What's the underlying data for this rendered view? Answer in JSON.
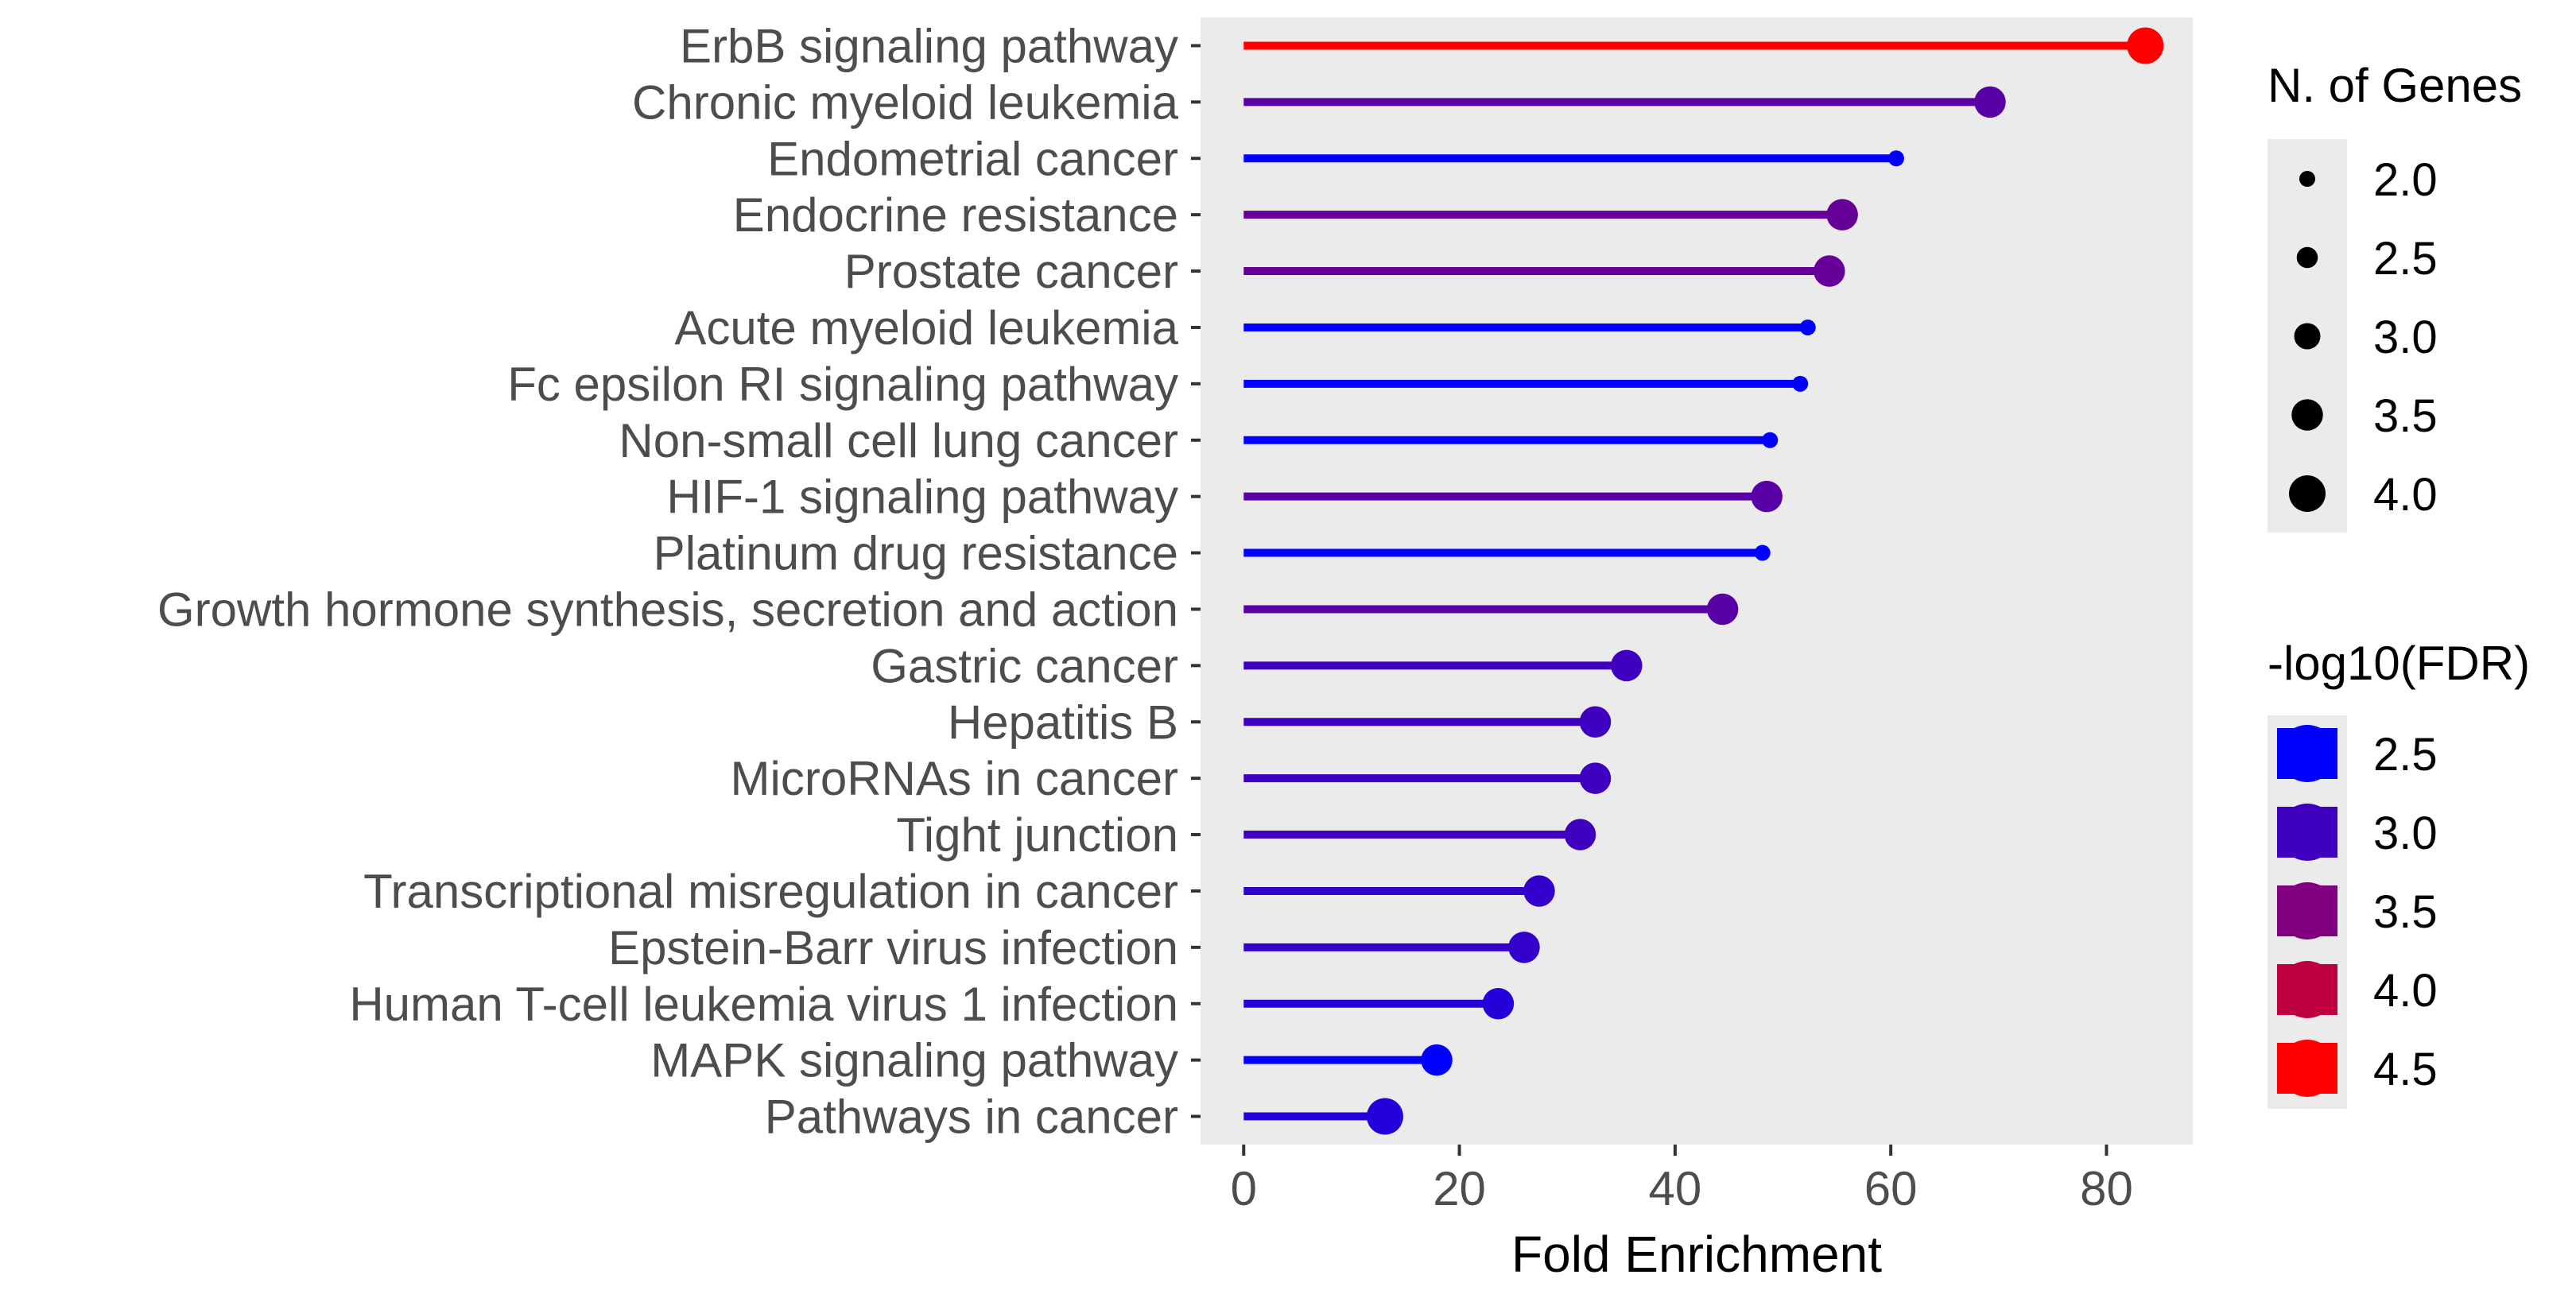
{
  "chart_data": {
    "type": "lollipop",
    "xlabel": "Fold Enrichment",
    "xlim": [
      -4,
      88
    ],
    "x_ticks": [
      0,
      20,
      40,
      60,
      80
    ],
    "x_tick_labels": [
      "0",
      "20",
      "40",
      "60",
      "80"
    ],
    "categories": [
      "ErbB signaling pathway",
      "Chronic myeloid leukemia",
      "Endometrial cancer",
      "Endocrine resistance",
      "Prostate cancer",
      "Acute myeloid leukemia",
      "Fc epsilon RI signaling pathway",
      "Non-small cell lung cancer",
      "HIF-1 signaling pathway",
      "Platinum drug resistance",
      "Growth hormone synthesis, secretion and action",
      "Gastric cancer",
      "Hepatitis B",
      "MicroRNAs in cancer",
      "Tight junction",
      "Transcriptional misregulation in cancer",
      "Epstein-Barr virus infection",
      "Human T-cell leukemia virus 1 infection",
      "MAPK signaling pathway",
      "Pathways in cancer"
    ],
    "fold_enrichment": [
      83.6,
      69.2,
      60.5,
      55.5,
      54.3,
      52.3,
      51.6,
      48.8,
      48.5,
      48.1,
      44.4,
      35.5,
      32.6,
      32.6,
      31.2,
      27.4,
      26.0,
      23.6,
      17.9,
      13.1
    ],
    "n_genes": [
      4,
      3.5,
      2,
      3.5,
      3.5,
      2,
      2,
      2,
      3.5,
      2,
      3.5,
      3.5,
      3.5,
      3.5,
      3.5,
      3.5,
      3.5,
      3.5,
      3.5,
      4
    ],
    "neg_log10_fdr": [
      4.6,
      3.2,
      2.5,
      3.3,
      3.3,
      2.5,
      2.5,
      2.5,
      3.2,
      2.5,
      3.2,
      3.0,
      3.0,
      3.0,
      3.0,
      2.9,
      2.9,
      2.8,
      2.5,
      2.8
    ],
    "size_legend": {
      "title": "N. of Genes",
      "values": [
        2.0,
        2.5,
        3.0,
        3.5,
        4.0
      ],
      "labels": [
        "2.0",
        "2.5",
        "3.0",
        "3.5",
        "4.0"
      ]
    },
    "color_legend": {
      "title": "-log10(FDR)",
      "values": [
        2.5,
        3.0,
        3.5,
        4.0,
        4.5
      ],
      "labels": [
        "2.5",
        "3.0",
        "3.5",
        "4.0",
        "4.5"
      ],
      "low_color": "#0000ff",
      "high_color": "#ff0000"
    },
    "panel_color": "#ebebeb",
    "grid": false,
    "legend_position": "right"
  }
}
